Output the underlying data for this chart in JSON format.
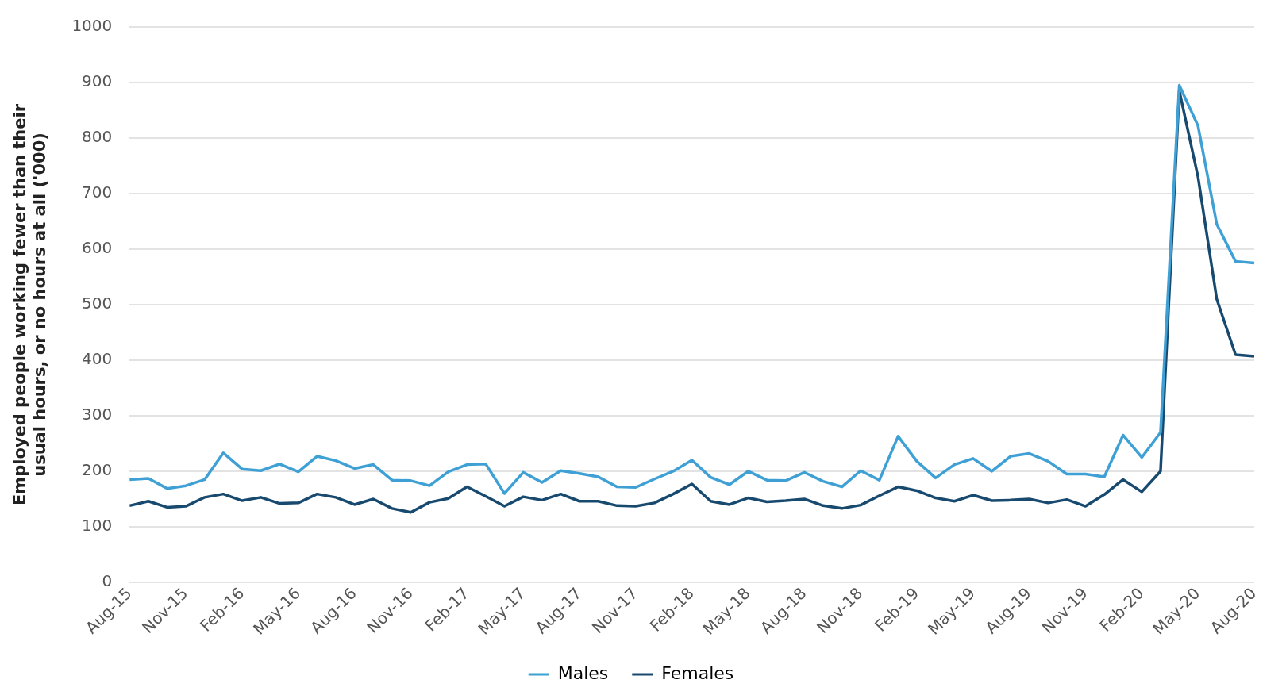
{
  "chart_data": {
    "type": "line",
    "ylabel": "Employed people working fewer than their usual hours, or no hours at all ('000)",
    "categories": [
      "Aug-15",
      null,
      null,
      "Nov-15",
      null,
      null,
      "Feb-16",
      null,
      null,
      "May-16",
      null,
      null,
      "Aug-16",
      null,
      null,
      "Nov-16",
      null,
      null,
      "Feb-17",
      null,
      null,
      "May-17",
      null,
      null,
      "Aug-17",
      null,
      null,
      "Nov-17",
      null,
      null,
      "Feb-18",
      null,
      null,
      "May-18",
      null,
      null,
      "Aug-18",
      null,
      null,
      "Nov-18",
      null,
      null,
      "Feb-19",
      null,
      null,
      "May-19",
      null,
      null,
      "Aug-19",
      null,
      null,
      "Nov-19",
      null,
      null,
      "Feb-20",
      null,
      null,
      "May-20",
      null,
      null,
      "Aug-20"
    ],
    "series": [
      {
        "name": "Males",
        "color": "#3fa0d5",
        "values": [
          185,
          187,
          169,
          174,
          185,
          233,
          204,
          201,
          213,
          199,
          227,
          219,
          205,
          212,
          184,
          183,
          174,
          199,
          212,
          213,
          160,
          198,
          180,
          201,
          196,
          190,
          172,
          171,
          186,
          200,
          220,
          189,
          176,
          200,
          184,
          183,
          198,
          182,
          172,
          201,
          184,
          263,
          218,
          188,
          212,
          223,
          200,
          227,
          232,
          218,
          195,
          195,
          190,
          265,
          225,
          270,
          895,
          822,
          645,
          578,
          575
        ]
      },
      {
        "name": "Females",
        "color": "#184a70",
        "values": [
          138,
          146,
          135,
          137,
          153,
          159,
          147,
          153,
          142,
          143,
          159,
          153,
          140,
          150,
          133,
          126,
          144,
          151,
          172,
          155,
          137,
          154,
          148,
          159,
          146,
          146,
          138,
          137,
          143,
          159,
          177,
          146,
          140,
          152,
          145,
          147,
          150,
          138,
          133,
          139,
          156,
          172,
          165,
          152,
          146,
          157,
          147,
          148,
          150,
          143,
          149,
          137,
          158,
          185,
          163,
          200,
          885,
          730,
          510,
          410,
          407
        ]
      }
    ],
    "ylim": [
      0,
      1000
    ],
    "yticks": [
      0,
      100,
      200,
      300,
      400,
      500,
      600,
      700,
      800,
      900,
      1000
    ],
    "grid": "y",
    "legend": "bottom",
    "marker": "none",
    "line_style": "solid"
  }
}
